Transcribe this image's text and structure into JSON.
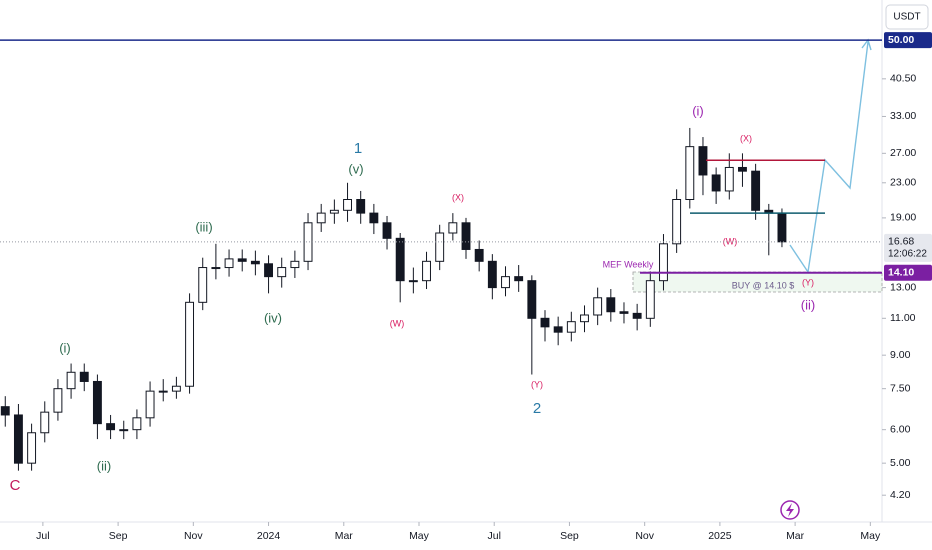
{
  "chart_data": {
    "type": "candlestick",
    "currency": "USDT",
    "log_scale": true,
    "grid": false,
    "ylim": [
      3.63,
      62.2
    ],
    "yticks": [
      {
        "value": 4.2,
        "label": "4.20"
      },
      {
        "value": 5,
        "label": "5.00"
      },
      {
        "value": 6,
        "label": "6.00"
      },
      {
        "value": 7.5,
        "label": "7.50"
      },
      {
        "value": 9,
        "label": "9.00"
      },
      {
        "value": 11,
        "label": "11.00"
      },
      {
        "value": 13,
        "label": "13.00"
      },
      {
        "value": 19,
        "label": "19.00"
      },
      {
        "value": 23,
        "label": "23.00"
      },
      {
        "value": 27,
        "label": "27.00"
      },
      {
        "value": 33,
        "label": "33.00"
      },
      {
        "value": 40.5,
        "label": "40.50"
      }
    ],
    "xlim": [
      -1.14,
      22.31
    ],
    "xticks": [
      {
        "value": 0,
        "label": "Jul"
      },
      {
        "value": 2,
        "label": "Sep"
      },
      {
        "value": 4,
        "label": "Nov"
      },
      {
        "value": 6,
        "label": "2024"
      },
      {
        "value": 8,
        "label": "Mar"
      },
      {
        "value": 10,
        "label": "May"
      },
      {
        "value": 12,
        "label": "Jul"
      },
      {
        "value": 14,
        "label": "Sep"
      },
      {
        "value": 16,
        "label": "Nov"
      },
      {
        "value": 18,
        "label": "2025"
      },
      {
        "value": 20,
        "label": "Mar"
      },
      {
        "value": 22,
        "label": "May"
      }
    ],
    "candles": {
      "color": "#131722",
      "x": [
        -1.0,
        -0.65,
        -0.3,
        0.05,
        0.4,
        0.75,
        1.1,
        1.45,
        1.8,
        2.15,
        2.5,
        2.85,
        3.2,
        3.55,
        3.9,
        4.25,
        4.6,
        4.95,
        5.3,
        5.65,
        6.0,
        6.35,
        6.7,
        7.05,
        7.4,
        7.75,
        8.1,
        8.45,
        8.8,
        9.15,
        9.5,
        9.85,
        10.2,
        10.55,
        10.9,
        11.25,
        11.6,
        11.95,
        12.3,
        12.65,
        13.0,
        13.35,
        13.7,
        14.05,
        14.4,
        14.75,
        15.1,
        15.45,
        15.8,
        16.15,
        16.5,
        16.85,
        17.2,
        17.55,
        17.9,
        18.25,
        18.6,
        18.95,
        19.3,
        19.65
      ],
      "open": [
        6.8,
        6.5,
        5.0,
        5.9,
        6.6,
        7.5,
        8.2,
        7.8,
        6.2,
        6.0,
        6.0,
        6.4,
        7.4,
        7.4,
        7.6,
        12.0,
        14.5,
        14.5,
        15.2,
        15.0,
        14.8,
        13.8,
        14.5,
        15.0,
        18.5,
        19.5,
        19.8,
        21.0,
        19.5,
        18.5,
        17.0,
        13.5,
        13.5,
        15.0,
        17.5,
        18.5,
        16.0,
        15.0,
        13.0,
        13.8,
        13.5,
        11.0,
        10.5,
        10.2,
        10.8,
        11.2,
        12.3,
        11.4,
        11.3,
        11.0,
        13.5,
        16.5,
        21.0,
        28.0,
        24.0,
        22.0,
        25.0,
        24.5,
        19.8,
        19.5
      ],
      "high": [
        7.2,
        6.9,
        6.2,
        7.0,
        7.9,
        8.6,
        8.6,
        8.1,
        6.5,
        6.3,
        6.7,
        7.8,
        7.9,
        8.0,
        12.6,
        15.3,
        16.5,
        16.0,
        16.0,
        15.9,
        15.5,
        15.3,
        15.9,
        19.5,
        20.5,
        21.0,
        23.0,
        22.0,
        20.5,
        19.2,
        17.5,
        14.5,
        15.8,
        18.3,
        19.5,
        19.0,
        16.8,
        15.6,
        14.6,
        14.7,
        13.9,
        11.5,
        11.1,
        11.4,
        11.8,
        13.0,
        12.9,
        12.0,
        11.9,
        14.2,
        17.4,
        22.2,
        31.0,
        29.5,
        25.0,
        27.0,
        27.0,
        25.5,
        20.5,
        20.0
      ],
      "low": [
        6.1,
        4.8,
        4.8,
        5.6,
        6.3,
        7.1,
        7.4,
        5.7,
        5.7,
        5.7,
        5.7,
        6.1,
        7.0,
        7.1,
        7.3,
        11.5,
        13.6,
        13.8,
        14.2,
        13.9,
        12.6,
        13.0,
        13.7,
        14.3,
        17.6,
        18.4,
        18.6,
        18.4,
        17.4,
        16.0,
        12.0,
        12.6,
        12.9,
        14.3,
        16.8,
        15.2,
        14.2,
        12.2,
        12.4,
        12.7,
        8.1,
        9.7,
        9.5,
        9.7,
        10.2,
        10.6,
        10.8,
        10.7,
        10.3,
        10.5,
        12.8,
        15.7,
        20.0,
        21.5,
        20.5,
        21.0,
        22.5,
        18.8,
        15.5,
        16.2
      ],
      "close": [
        6.5,
        5.0,
        5.9,
        6.6,
        7.5,
        8.2,
        7.8,
        6.2,
        6.0,
        6.0,
        6.4,
        7.4,
        7.4,
        7.6,
        12.0,
        14.5,
        14.5,
        15.2,
        15.0,
        14.8,
        13.8,
        14.5,
        15.0,
        18.5,
        19.5,
        19.8,
        21.0,
        19.5,
        18.5,
        17.0,
        13.5,
        13.5,
        15.0,
        17.5,
        18.5,
        16.0,
        15.0,
        13.0,
        13.8,
        13.5,
        11.0,
        10.5,
        10.2,
        10.8,
        11.2,
        12.3,
        11.4,
        11.3,
        11.0,
        13.5,
        16.5,
        21.0,
        28.0,
        24.0,
        22.0,
        25.0,
        24.5,
        19.8,
        19.5,
        16.68
      ]
    },
    "last_price": {
      "value": 16.68,
      "label": "16.68",
      "countdown": "12:06:22"
    },
    "levels": [
      {
        "value": 50,
        "label": "50.00",
        "color": "#1a2a8a"
      },
      {
        "value": 14.1,
        "label": "14.10",
        "color": "#7b1fa2"
      },
      {
        "value": 26,
        "color": "#b2163a"
      },
      {
        "value": 19.5,
        "color": "#0f5c6e"
      }
    ],
    "annotations": [
      {
        "text": "C",
        "color": "#c2185b"
      },
      {
        "text": "(i)",
        "color": "#2e6b4f"
      },
      {
        "text": "(ii)",
        "color": "#2e6b4f"
      },
      {
        "text": "(iii)",
        "color": "#2e6b4f"
      },
      {
        "text": "(iv)",
        "color": "#2e6b4f"
      },
      {
        "text": "(v)",
        "color": "#2e6b4f"
      },
      {
        "text": "1",
        "color": "#2a7aa6"
      },
      {
        "text": "(W)",
        "color": "#d81b60"
      },
      {
        "text": "(X)",
        "color": "#d81b60"
      },
      {
        "text": "(Y)",
        "color": "#d81b60"
      },
      {
        "text": "2",
        "color": "#2a7aa6"
      },
      {
        "text": "(i)",
        "color": "#9c27b0"
      },
      {
        "text": "(X)",
        "color": "#d81b60"
      },
      {
        "text": "(W)",
        "color": "#d81b60"
      },
      {
        "text": "(Y)",
        "color": "#d81b60"
      },
      {
        "text": "(ii)",
        "color": "#9c27b0"
      },
      {
        "text": "MEF Weekly",
        "color": "#9c27b0"
      },
      {
        "text": "BUY @ 14.10 $",
        "color": "#6a5a8a"
      }
    ]
  }
}
